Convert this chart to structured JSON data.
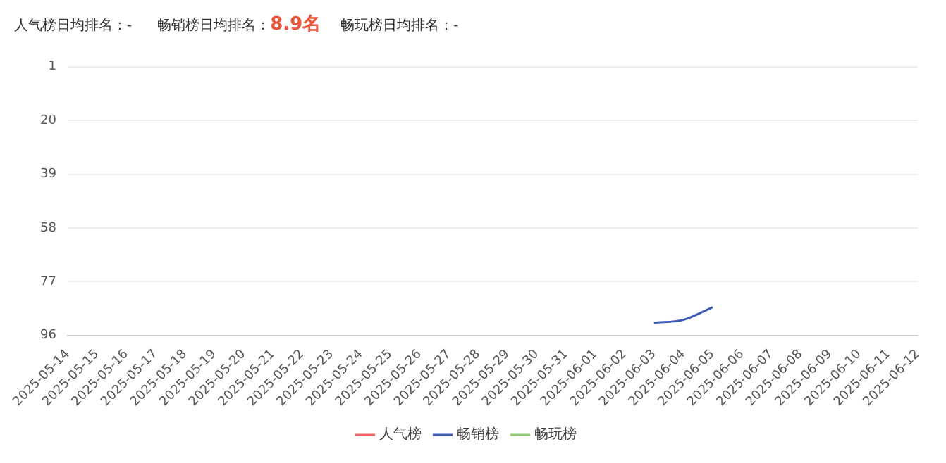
{
  "chart_data": {
    "type": "line",
    "annotations": [
      "人气榜日均排名：-",
      "畅销榜日均排名：",
      "8.9名",
      "畅玩榜日均排名：-"
    ],
    "categories": [
      "2025-05-14",
      "2025-05-15",
      "2025-05-16",
      "2025-05-17",
      "2025-05-18",
      "2025-05-19",
      "2025-05-20",
      "2025-05-21",
      "2025-05-22",
      "2025-05-23",
      "2025-05-24",
      "2025-05-25",
      "2025-05-26",
      "2025-05-27",
      "2025-05-28",
      "2025-05-29",
      "2025-05-30",
      "2025-05-31",
      "2025-06-01",
      "2025-06-02",
      "2025-06-03",
      "2025-06-04",
      "2025-06-05",
      "2025-06-06",
      "2025-06-07",
      "2025-06-08",
      "2025-06-09",
      "2025-06-10",
      "2025-06-11",
      "2025-06-12"
    ],
    "series": [
      {
        "name": "人气榜",
        "color": "#ee6666",
        "values": [
          null,
          null,
          null,
          null,
          null,
          null,
          null,
          null,
          null,
          null,
          null,
          null,
          null,
          null,
          null,
          null,
          null,
          null,
          null,
          null,
          null,
          null,
          null,
          null,
          null,
          null,
          null,
          null,
          null,
          null
        ]
      },
      {
        "name": "畅销榜",
        "color": "#3b5bb5",
        "values": [
          null,
          null,
          null,
          null,
          null,
          null,
          null,
          null,
          null,
          null,
          null,
          null,
          null,
          null,
          null,
          null,
          null,
          null,
          null,
          null,
          91.5,
          90.5,
          86,
          null,
          null,
          null,
          null,
          null,
          null,
          null
        ]
      },
      {
        "name": "畅玩榜",
        "color": "#91cc75",
        "values": [
          null,
          null,
          null,
          null,
          null,
          null,
          null,
          null,
          null,
          null,
          null,
          null,
          null,
          null,
          null,
          null,
          null,
          null,
          null,
          null,
          null,
          null,
          null,
          null,
          null,
          null,
          null,
          null,
          null,
          null
        ]
      }
    ],
    "ylim": [
      96,
      1
    ],
    "yticks": [
      1,
      20,
      39,
      58,
      77,
      96
    ],
    "grid": "y",
    "legend": "bottom",
    "marker": "none",
    "line_style": "solid"
  }
}
